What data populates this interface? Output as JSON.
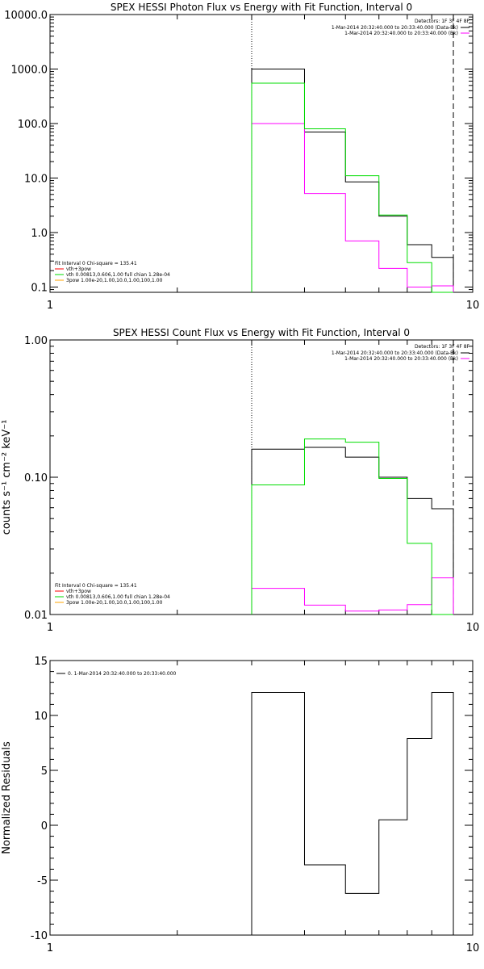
{
  "colors": {
    "axis": "#000000",
    "total": "#000000",
    "fit": "#ff00ff",
    "vth": "#00dd00",
    "vth_bg_line": "#00ff00",
    "bg": "#ffffff"
  },
  "chart_data": [
    {
      "type": "step",
      "title": "SPEX HESSI Photon Flux vs Energy with Fit Function, Interval 0",
      "xlabel": "",
      "ylabel": "",
      "xscale": "log",
      "yscale": "log",
      "xlim": [
        1,
        10
      ],
      "ylim": [
        0.08,
        10000
      ],
      "xticks": [
        {
          "v": 1,
          "label": "1"
        },
        {
          "v": 10,
          "label": "10"
        }
      ],
      "yticks": [
        {
          "v": 0.1,
          "label": "0.1"
        },
        {
          "v": 1,
          "label": "1.0"
        },
        {
          "v": 10,
          "label": "10.0"
        },
        {
          "v": 100,
          "label": "100.0"
        },
        {
          "v": 1000,
          "label": "1000.0"
        },
        {
          "v": 10000,
          "label": "10000.0"
        }
      ],
      "detectors": "Detectors: 1F 3F 4F 8F",
      "legend_top": [
        {
          "text": "1-Mar-2014 20:32:40.000 to 20:33:40.000 (Data-Bk)",
          "color": "#000000"
        },
        {
          "text": "1-Mar-2014 20:32:40.000 to 20:33:40.000 (Bk)",
          "color": "#ff00ff"
        }
      ],
      "legend_bottom": [
        {
          "text": "Fit Interval 0   Chi-square = 135.41",
          "color": null
        },
        {
          "text": "vth+3pow",
          "color": "#ff0000"
        },
        {
          "text": "vth 0.00813,0.606,1.00  full chian 1.28e-04",
          "color": "#00dd00"
        },
        {
          "text": "3pow 1.00e-20,1.00,10.0,1.00,100,1.00",
          "color": "#ffa500"
        }
      ],
      "vlines": [
        {
          "x": 3,
          "style": "dotted"
        },
        {
          "x": 9,
          "style": "dashed"
        }
      ],
      "edges": [
        3,
        4,
        5,
        6,
        7,
        8,
        9
      ],
      "series": [
        {
          "name": "Data-Bk",
          "color": "#000000",
          "values": [
            1000,
            70,
            8.5,
            2.0,
            0.6,
            0.35
          ]
        },
        {
          "name": "Bk",
          "color": "#ff00ff",
          "values": [
            100,
            5.2,
            0.7,
            0.22,
            0.1,
            0.105
          ]
        },
        {
          "name": "vth",
          "color": "#00dd00",
          "values": [
            550,
            80,
            11,
            2.1,
            0.28,
            0.05
          ]
        }
      ]
    },
    {
      "type": "step",
      "title": "SPEX HESSI Count Flux vs Energy with Fit Function, Interval 0",
      "xlabel": "",
      "ylabel": "counts s⁻¹ cm⁻² keV⁻¹",
      "xscale": "log",
      "yscale": "log",
      "xlim": [
        1,
        10
      ],
      "ylim": [
        0.01,
        1
      ],
      "xticks": [
        {
          "v": 1,
          "label": "1"
        },
        {
          "v": 10,
          "label": "10"
        }
      ],
      "yticks": [
        {
          "v": 0.01,
          "label": "0.01"
        },
        {
          "v": 0.1,
          "label": "0.10"
        },
        {
          "v": 1,
          "label": "1.00"
        }
      ],
      "detectors": "Detectors: 1F 3F 4F 8F",
      "legend_top": [
        {
          "text": "1-Mar-2014 20:32:40.000 to 20:33:40.000 (Data-Bk)",
          "color": "#000000"
        },
        {
          "text": "1-Mar-2014 20:32:40.000 to 20:33:40.000 (Bk)",
          "color": "#ff00ff"
        }
      ],
      "legend_bottom": [
        {
          "text": "Fit Interval 0   Chi-square = 135.41",
          "color": null
        },
        {
          "text": "vth+3pow",
          "color": "#ff0000"
        },
        {
          "text": "vth 0.00813,0.606,1.00  full chian 1.28e-04",
          "color": "#00dd00"
        },
        {
          "text": "3pow 1.00e-20,1.00,10.0,1.00,100,1.00",
          "color": "#ffa500"
        }
      ],
      "vlines": [
        {
          "x": 3,
          "style": "dotted"
        },
        {
          "x": 9,
          "style": "dashed"
        }
      ],
      "edges": [
        3,
        4,
        5,
        6,
        7,
        8,
        9
      ],
      "series": [
        {
          "name": "Data-Bk",
          "color": "#000000",
          "values": [
            0.16,
            0.165,
            0.14,
            0.1,
            0.07,
            0.059
          ]
        },
        {
          "name": "Bk",
          "color": "#ff00ff",
          "values": [
            0.0155,
            0.0117,
            0.0106,
            0.0108,
            0.0118,
            0.0185
          ]
        },
        {
          "name": "vth",
          "color": "#00dd00",
          "values": [
            0.088,
            0.19,
            0.18,
            0.098,
            0.033,
            0.008
          ]
        }
      ]
    },
    {
      "type": "step",
      "title": "",
      "xlabel": "",
      "ylabel": "Normalized Residuals",
      "xscale": "log",
      "yscale": "linear",
      "xlim": [
        1,
        10
      ],
      "ylim": [
        -10,
        15
      ],
      "xticks": [
        {
          "v": 1,
          "label": "1"
        },
        {
          "v": 10,
          "label": "10"
        }
      ],
      "yticks": [
        {
          "v": -10,
          "label": "-10"
        },
        {
          "v": -5,
          "label": "-5"
        },
        {
          "v": 0,
          "label": "0"
        },
        {
          "v": 5,
          "label": "5"
        },
        {
          "v": 10,
          "label": "10"
        },
        {
          "v": 15,
          "label": "15"
        }
      ],
      "legend_top_left": [
        {
          "text": "0. 1-Mar-2014 20:32:40.000 to 20:33:40.000",
          "color": "#000000"
        }
      ],
      "edges": [
        3,
        4,
        5,
        6,
        7,
        8,
        9
      ],
      "series": [
        {
          "name": "0. 1-Mar-2014 20:32:40.000 to 20:33:40.000",
          "color": "#000000",
          "values": [
            12.1,
            -3.6,
            -6.2,
            0.5,
            7.9,
            12.1
          ]
        }
      ]
    }
  ]
}
